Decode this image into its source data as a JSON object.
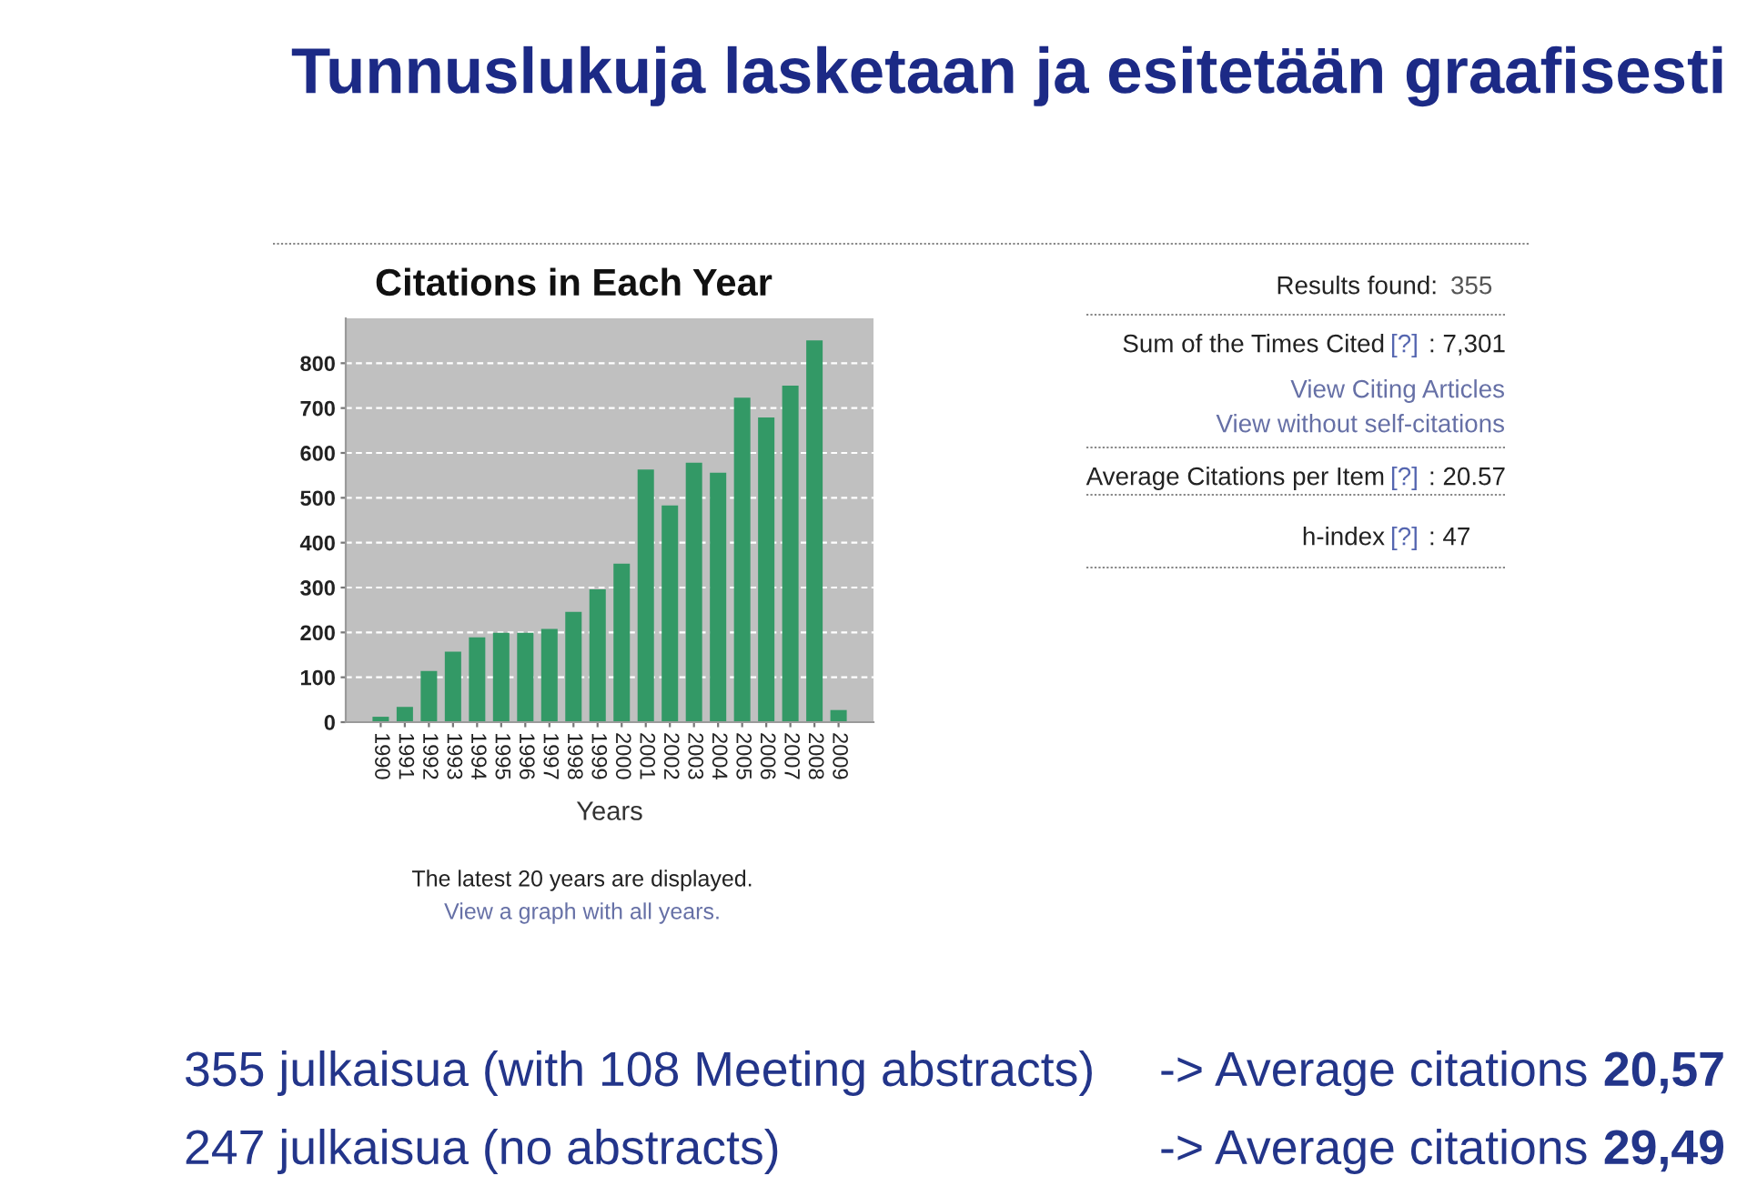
{
  "chart_data": {
    "type": "bar",
    "title": "Tunnuslukuja lasketaan ja esitetään graafisesti",
    "subtitle": "Citations in Each Year",
    "xlabel": "Years",
    "categories": [
      "1990",
      "1991",
      "1992",
      "1993",
      "1994",
      "1995",
      "1996",
      "1997",
      "1998",
      "1999",
      "2000",
      "2001",
      "2002",
      "2003",
      "2004",
      "2005",
      "2006",
      "2007",
      "2008",
      "2009"
    ],
    "values": [
      12,
      34,
      114,
      157,
      189,
      199,
      199,
      208,
      246,
      296,
      353,
      563,
      483,
      578,
      556,
      723,
      679,
      750,
      851,
      27
    ],
    "color": "#339966",
    "ylim": [
      0,
      900
    ],
    "yticks": [
      0,
      100,
      200,
      300,
      400,
      500,
      600,
      700,
      800
    ],
    "grid": "y",
    "annotations": [
      "Results found:",
      "355",
      "Sum of the Times Cited",
      "[?]",
      ": 7,301",
      "View Citing Articles",
      "View without self-citations",
      "Average Citations per Item",
      "[?]",
      ": 20.57",
      "h-index",
      "[?]",
      ": 47",
      "The latest 20 years are displayed.",
      "View a graph with all years.",
      "355 julkaisua (with 108 Meeting abstracts)",
      "-> Average citations",
      "20,57",
      "247 julkaisua (no abstracts)",
      "-> Average citations",
      "29,49"
    ]
  }
}
